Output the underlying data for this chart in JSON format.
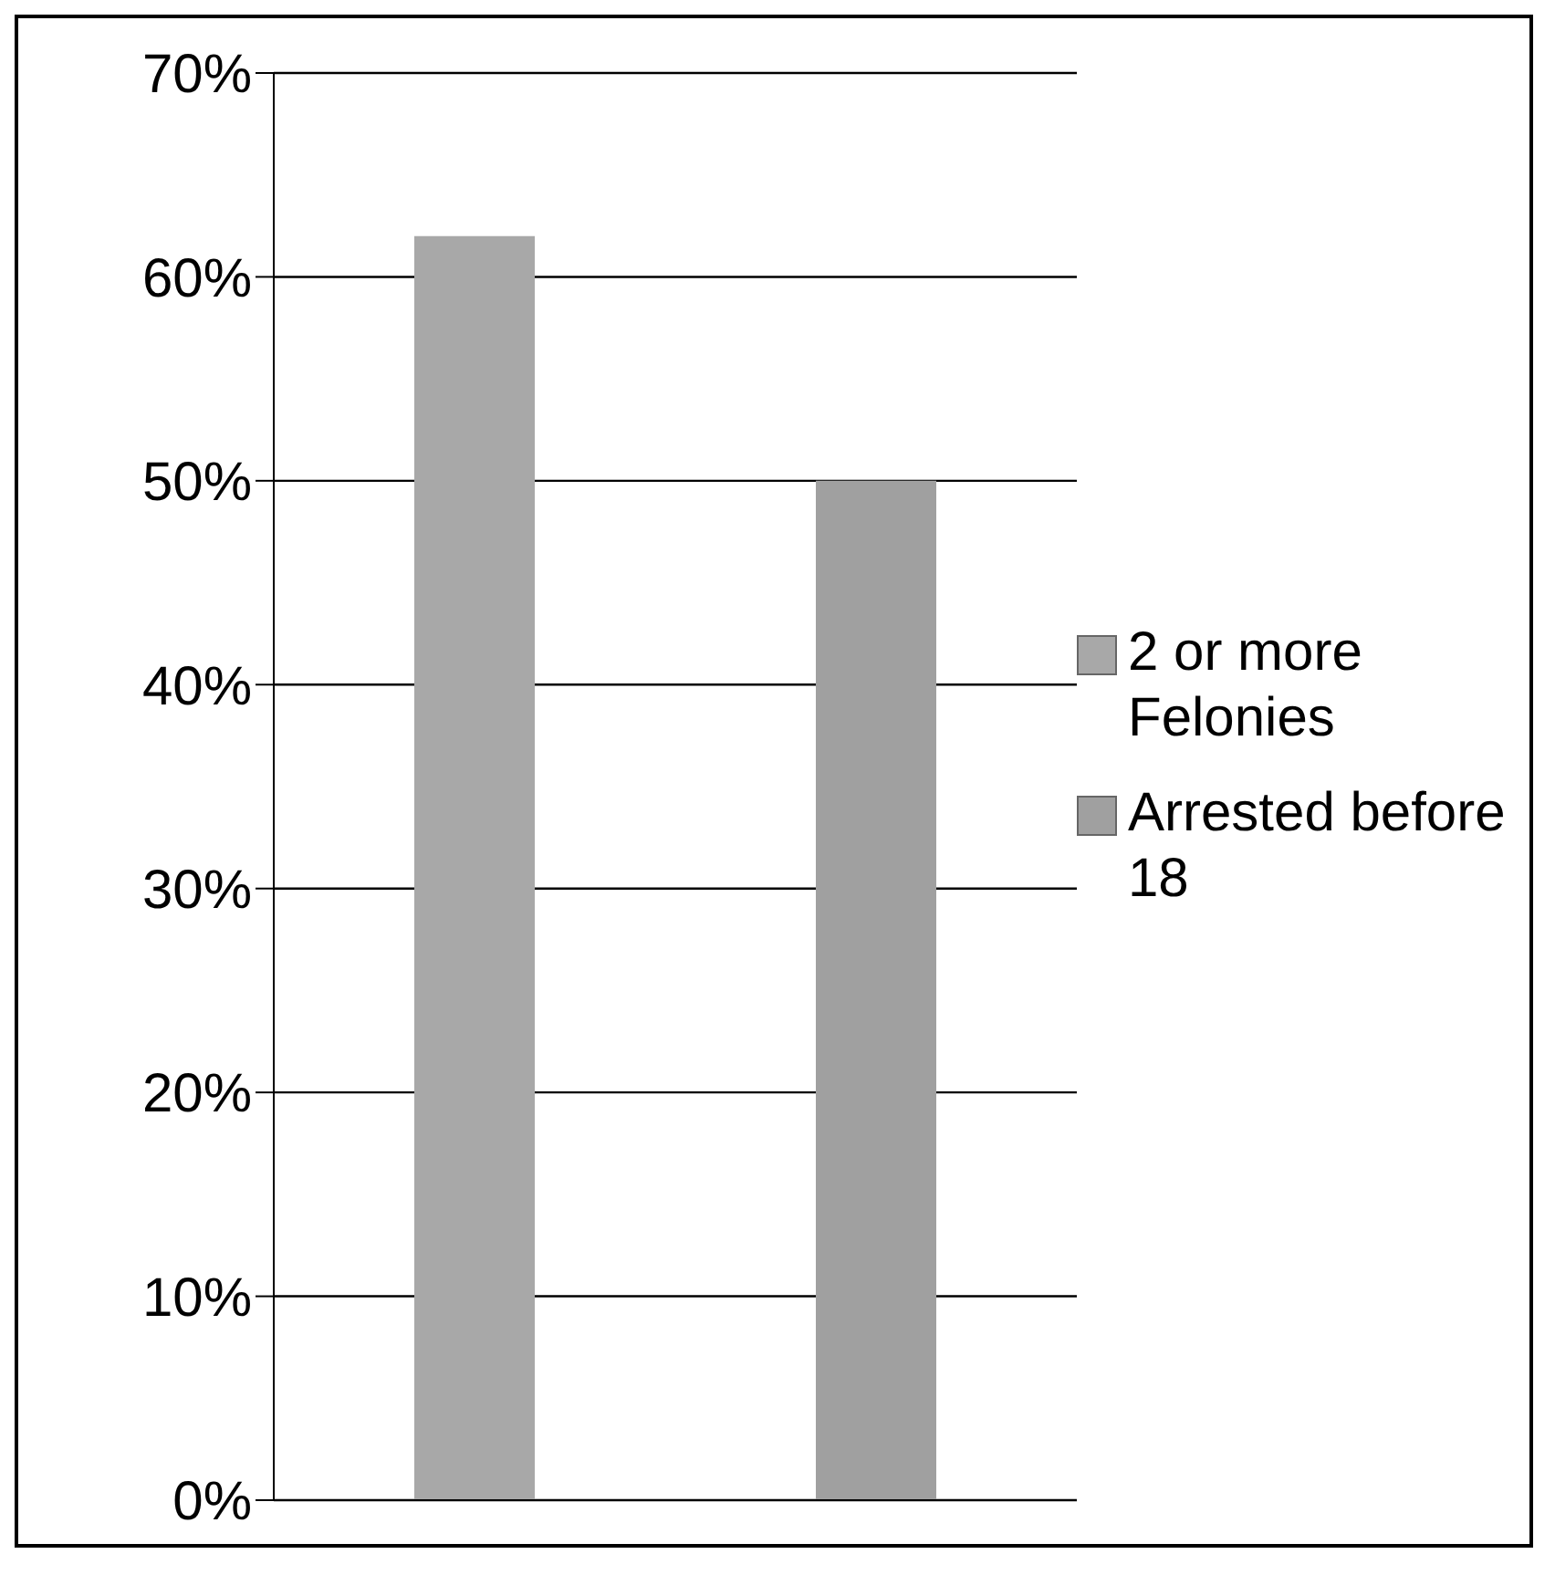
{
  "chart_data": {
    "type": "bar",
    "categories": [
      null,
      null
    ],
    "series": [
      {
        "name": "2 or more Felonies",
        "color": "#a8a8a8",
        "values": [
          62,
          null
        ]
      },
      {
        "name": "Arrested before 18",
        "color": "#a0a0a0",
        "values": [
          null,
          50
        ]
      }
    ],
    "ylim": [
      0,
      70
    ],
    "yticks": [
      {
        "value": 0,
        "label": "0%"
      },
      {
        "value": 10,
        "label": "10%"
      },
      {
        "value": 20,
        "label": "20%"
      },
      {
        "value": 30,
        "label": "30%"
      },
      {
        "value": 40,
        "label": "40%"
      },
      {
        "value": 50,
        "label": "50%"
      },
      {
        "value": 60,
        "label": "60%"
      },
      {
        "value": 70,
        "label": "70%"
      }
    ],
    "grid": "y",
    "legend": "right"
  }
}
